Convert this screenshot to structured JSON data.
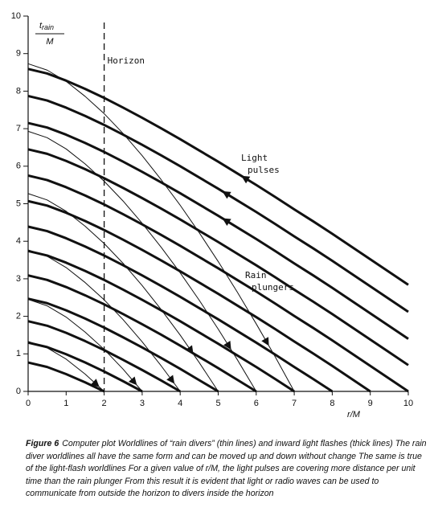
{
  "chart_data": {
    "type": "line",
    "ylabel": {
      "numerator": "t",
      "subscript": "rain",
      "denominator": "M"
    },
    "xlabel": "r/M",
    "xlim": [
      0,
      10
    ],
    "ylim": [
      0,
      10
    ],
    "xticks": [
      0,
      1,
      2,
      3,
      4,
      5,
      6,
      7,
      8,
      9,
      10
    ],
    "yticks": [
      0,
      1,
      2,
      3,
      4,
      5,
      6,
      7,
      8,
      9,
      10
    ],
    "horizon": {
      "x": 2,
      "label": "Horizon"
    },
    "annotations": [
      {
        "text": [
          "Light",
          "pulses"
        ]
      },
      {
        "text": [
          "Rain",
          "plungers"
        ]
      }
    ],
    "x": [
      0,
      0.5,
      1,
      1.5,
      2,
      2.5,
      3,
      3.5,
      4,
      4.5,
      5,
      5.5,
      6,
      6.5,
      7,
      7.5,
      8,
      8.5,
      9,
      9.5,
      10
    ],
    "series": [
      {
        "style": "thick",
        "color": "#111111",
        "values": [
          0.77,
          0.65,
          0.46,
          0.24,
          0,
          null,
          null,
          null,
          null,
          null,
          null,
          null,
          null,
          null,
          null,
          null,
          null,
          null,
          null,
          null,
          null
        ]
      },
      {
        "style": "thick",
        "color": "#111111",
        "values": [
          1.3,
          1.18,
          0.99,
          0.77,
          0.53,
          0.27,
          0,
          null,
          null,
          null,
          null,
          null,
          null,
          null,
          null,
          null,
          null,
          null,
          null,
          null,
          null
        ]
      },
      {
        "style": "thick",
        "color": "#111111",
        "values": [
          1.87,
          1.75,
          1.56,
          1.34,
          1.1,
          0.84,
          0.57,
          0.29,
          0,
          null,
          null,
          null,
          null,
          null,
          null,
          null,
          null,
          null,
          null,
          null,
          null
        ]
      },
      {
        "style": "thick",
        "color": "#111111",
        "values": [
          2.47,
          2.35,
          2.16,
          1.94,
          1.7,
          1.44,
          1.17,
          0.89,
          0.6,
          0.3,
          0,
          null,
          null,
          null,
          null,
          null,
          null,
          null,
          null,
          null,
          null
        ]
      },
      {
        "style": "thick",
        "color": "#111111",
        "values": [
          3.09,
          2.97,
          2.78,
          2.56,
          2.32,
          2.06,
          1.79,
          1.51,
          1.22,
          0.92,
          0.62,
          0.31,
          0,
          null,
          null,
          null,
          null,
          null,
          null,
          null,
          null
        ]
      },
      {
        "style": "thick",
        "color": "#111111",
        "values": [
          3.74,
          3.62,
          3.43,
          3.21,
          2.97,
          2.71,
          2.44,
          2.16,
          1.87,
          1.57,
          1.27,
          0.96,
          0.65,
          0.33,
          0,
          null,
          null,
          null,
          null,
          null,
          null
        ]
      },
      {
        "style": "thick",
        "color": "#111111",
        "values": [
          4.39,
          4.27,
          4.08,
          3.86,
          3.62,
          3.36,
          3.09,
          2.81,
          2.52,
          2.22,
          1.92,
          1.61,
          1.3,
          0.98,
          0.65,
          0.33,
          0,
          null,
          null,
          null,
          null
        ]
      },
      {
        "style": "thick",
        "color": "#111111",
        "values": [
          5.07,
          4.95,
          4.76,
          4.54,
          4.3,
          4.04,
          3.77,
          3.49,
          3.2,
          2.9,
          2.6,
          2.29,
          1.98,
          1.66,
          1.33,
          1.01,
          0.68,
          0.34,
          0,
          null,
          null
        ]
      },
      {
        "style": "thick",
        "color": "#111111",
        "values": [
          5.75,
          5.63,
          5.44,
          5.22,
          4.98,
          4.72,
          4.45,
          4.17,
          3.88,
          3.58,
          3.28,
          2.97,
          2.66,
          2.34,
          2.01,
          1.69,
          1.36,
          1.02,
          0.68,
          0.34,
          0
        ]
      },
      {
        "style": "thick",
        "color": "#111111",
        "values": [
          6.45,
          6.33,
          6.14,
          5.92,
          5.68,
          5.42,
          5.15,
          4.87,
          4.58,
          4.28,
          3.98,
          3.67,
          3.36,
          3.04,
          2.71,
          2.39,
          2.06,
          1.72,
          1.38,
          1.04,
          0.7
        ]
      },
      {
        "style": "thick",
        "color": "#111111",
        "values": [
          7.15,
          7.03,
          6.84,
          6.62,
          6.38,
          6.12,
          5.85,
          5.57,
          5.28,
          4.98,
          4.68,
          4.37,
          4.06,
          3.74,
          3.41,
          3.09,
          2.76,
          2.42,
          2.08,
          1.74,
          1.4
        ]
      },
      {
        "style": "thick",
        "color": "#111111",
        "values": [
          7.87,
          7.75,
          7.56,
          7.34,
          7.1,
          6.84,
          6.57,
          6.29,
          6.0,
          5.7,
          5.4,
          5.09,
          4.78,
          4.46,
          4.13,
          3.81,
          3.48,
          3.14,
          2.8,
          2.46,
          2.12
        ]
      },
      {
        "style": "thick",
        "color": "#111111",
        "values": [
          8.59,
          8.47,
          8.28,
          8.06,
          7.82,
          7.56,
          7.29,
          7.01,
          6.72,
          6.42,
          6.12,
          5.81,
          5.5,
          5.18,
          4.85,
          4.53,
          4.2,
          3.86,
          3.52,
          3.18,
          2.84
        ]
      },
      {
        "style": "thin",
        "color": "#111111",
        "values": [
          1.33,
          1.16,
          0.86,
          0.46,
          0,
          null,
          null,
          null,
          null,
          null,
          null,
          null,
          null,
          null,
          null,
          null,
          null,
          null,
          null,
          null,
          null
        ]
      },
      {
        "style": "thin",
        "color": "#111111",
        "values": [
          2.45,
          2.28,
          1.98,
          1.58,
          1.12,
          0.59,
          0,
          null,
          null,
          null,
          null,
          null,
          null,
          null,
          null,
          null,
          null,
          null,
          null,
          null,
          null
        ]
      },
      {
        "style": "thin",
        "color": "#111111",
        "values": [
          3.77,
          3.6,
          3.3,
          2.9,
          2.44,
          1.91,
          1.32,
          0.68,
          0,
          null,
          null,
          null,
          null,
          null,
          null,
          null,
          null,
          null,
          null,
          null,
          null
        ]
      },
      {
        "style": "thin",
        "color": "#111111",
        "values": [
          5.27,
          5.1,
          4.8,
          4.4,
          3.94,
          3.41,
          2.82,
          2.18,
          1.5,
          0.77,
          0,
          null,
          null,
          null,
          null,
          null,
          null,
          null,
          null,
          null,
          null
        ]
      },
      {
        "style": "thin",
        "color": "#111111",
        "values": [
          6.93,
          6.76,
          6.46,
          6.06,
          5.6,
          5.07,
          4.48,
          3.84,
          3.16,
          2.43,
          1.66,
          0.85,
          0,
          null,
          null,
          null,
          null,
          null,
          null,
          null,
          null
        ]
      },
      {
        "style": "thin",
        "color": "#111111",
        "values": [
          8.73,
          8.56,
          8.26,
          7.86,
          7.4,
          6.87,
          6.28,
          5.64,
          4.96,
          4.23,
          3.46,
          2.65,
          1.8,
          0.92,
          0,
          null,
          null,
          null,
          null,
          null,
          null
        ]
      }
    ],
    "caption": {
      "label": "Figure 6",
      "text": "Computer plot  Worldlines of “rain divers” (thin lines) and inward light flashes (thick lines)  The rain diver worldlines all have the same form and can be moved up and down without change  The same is true of the light-flash worldlines  For a given value of r/M, the light pulses are covering more distance per unit time than the rain plunger  From this result it is evident that light or radio waves can be used to communicate from outside the horizon to divers inside the horizon"
    }
  }
}
